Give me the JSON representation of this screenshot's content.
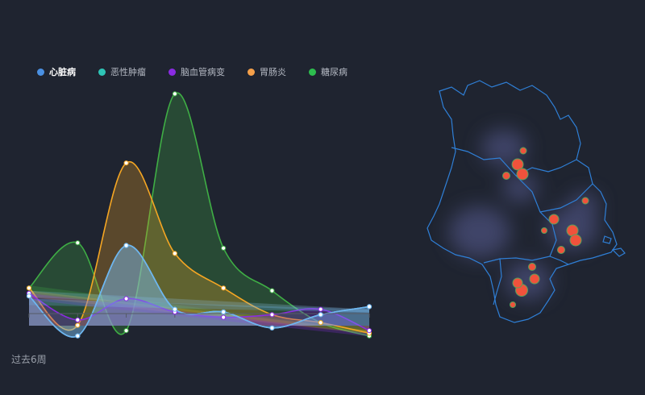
{
  "legend": {
    "items": [
      {
        "label": "心脏病",
        "color": "#4a90e2",
        "active": true
      },
      {
        "label": "恶性肿瘤",
        "color": "#2ec4b6",
        "active": false
      },
      {
        "label": "脑血管病变",
        "color": "#8a2be2",
        "active": false
      },
      {
        "label": "胃肠炎",
        "color": "#f5a04a",
        "active": false
      },
      {
        "label": "糖尿病",
        "color": "#2dbd4e",
        "active": false
      }
    ]
  },
  "period_label": "过去6周",
  "chart_data": {
    "type": "line",
    "smooth": true,
    "area": true,
    "x_count": 8,
    "ylim": [
      0,
      100
    ],
    "grid": false,
    "legend_position": "top-left",
    "series": [
      {
        "name": "心脏病",
        "color": "#6cb6f0",
        "values": [
          16,
          1,
          35,
          11,
          10,
          4,
          9,
          12
        ],
        "trend": [
          15,
          11
        ]
      },
      {
        "name": "恶性肿瘤",
        "color": "#8ec6f0",
        "values": [
          16,
          1,
          35,
          11,
          10,
          4,
          9,
          12
        ],
        "trend": [
          18,
          11
        ]
      },
      {
        "name": "脑血管病变",
        "color": "#8a2be2",
        "values": [
          17,
          7,
          15,
          10,
          8,
          9,
          11,
          3
        ],
        "trend": [
          17,
          2
        ]
      },
      {
        "name": "胃肠炎",
        "color": "#f5a623",
        "values": [
          19,
          5,
          66,
          32,
          19,
          9,
          6,
          2
        ],
        "trend": [
          18,
          3
        ]
      },
      {
        "name": "糖尿病",
        "color": "#3fae45",
        "values": [
          19,
          36,
          3,
          92,
          34,
          18,
          6,
          1
        ],
        "trend": [
          20,
          3
        ]
      }
    ]
  },
  "map": {
    "hotspots": [
      {
        "label": "",
        "value": 9
      },
      {
        "label": "",
        "value": 6
      },
      {
        "label": "",
        "value": 5
      },
      {
        "label": "",
        "value": 4
      },
      {
        "label": "",
        "value": 8
      },
      {
        "label": "",
        "value": 7
      },
      {
        "label": "",
        "value": 6
      },
      {
        "label": "",
        "value": 5
      },
      {
        "label": "",
        "value": 4
      },
      {
        "label": "",
        "value": 4
      },
      {
        "label": "",
        "value": 9
      },
      {
        "label": "",
        "value": 6
      },
      {
        "label": "",
        "value": 5
      },
      {
        "label": "",
        "value": 4
      },
      {
        "label": "",
        "value": 3
      }
    ]
  }
}
